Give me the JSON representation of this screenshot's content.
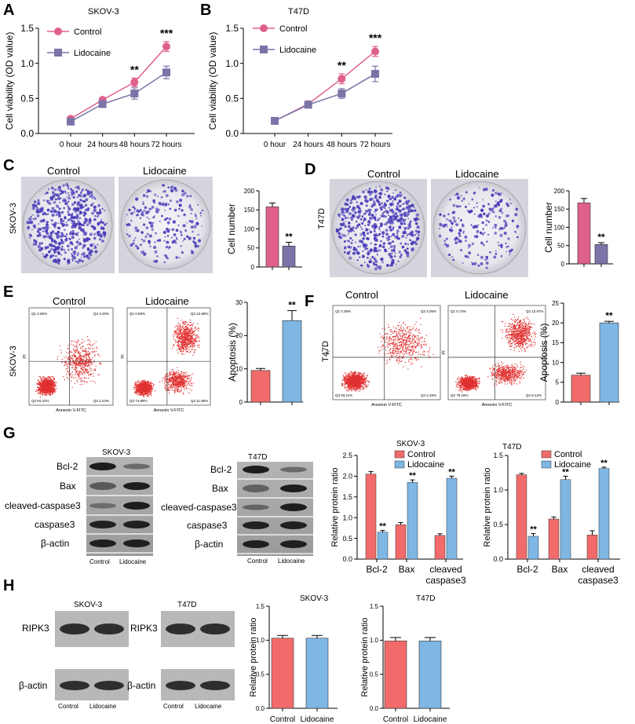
{
  "panel_letters": {
    "A": "A",
    "B": "B",
    "C": "C",
    "D": "D",
    "E": "E",
    "F": "F",
    "G": "G",
    "H": "H"
  },
  "colors": {
    "control_pink": "#e0608c",
    "lido_purple": "#7a74a8",
    "control_red": "#f26b6b",
    "lido_blue": "#7eb6e4",
    "dot_purple": "#4b3bb8",
    "flow_red": "#e03030"
  },
  "labels": {
    "skov3": "SKOV-3",
    "t47d": "T47D",
    "control": "Control",
    "lidocaine": "Lidocaine",
    "cell_number": "Cell number",
    "apoptosis": "Apoptosis (%)",
    "viability": "Cell viability (OD value)",
    "relative_ratio": "Relative protein ratio",
    "annexin": "Annexin V-FITC",
    "pi": "PI",
    "bcl2": "Bcl-2",
    "bax": "Bax",
    "cleaved_caspase3": "cleaved-caspase3",
    "caspase3": "caspase3",
    "bactin": "β-actin",
    "ripk3": "RIPK3",
    "cleaved_l1": "cleaved",
    "cleaved_l2": "caspase3"
  },
  "flow_quadrants": {
    "skov_control": [
      "Q1 0.65%",
      "Q2 3.49%",
      "Q3 94.22%",
      "Q4 2.24%"
    ],
    "skov_lido": [
      "Q1 0.69%",
      "Q2 12.68%",
      "Q3 74.89%",
      "Q4 11.96%"
    ],
    "t47d_control": [
      "Q1 0.39%",
      "Q2 4.05%",
      "Q3 93.11%",
      "Q4 2.45%"
    ],
    "t47d_lido": [
      "Q1 0.73%",
      "Q2 12.97%",
      "Q3 78.18%",
      "Q4 8.12%"
    ]
  },
  "chart_data": [
    {
      "id": "A",
      "type": "line",
      "title": "SKOV-3",
      "x": [
        "0 hour",
        "24 hours",
        "48 hours",
        "72 hours"
      ],
      "ylabel": "Cell viability (OD value)",
      "ylim": [
        0,
        1.5
      ],
      "yticks": [
        "0.0",
        "0.5",
        "1.0",
        "1.5"
      ],
      "series": [
        {
          "name": "Control",
          "values": [
            0.21,
            0.48,
            0.73,
            1.24
          ],
          "err": [
            0.03,
            0.03,
            0.06,
            0.07
          ]
        },
        {
          "name": "Lidocaine",
          "values": [
            0.17,
            0.42,
            0.57,
            0.87
          ],
          "err": [
            0.03,
            0.03,
            0.08,
            0.09
          ]
        }
      ],
      "significance": [
        "",
        "",
        "**",
        "***"
      ]
    },
    {
      "id": "B",
      "type": "line",
      "title": "T47D",
      "x": [
        "0 hour",
        "24 hours",
        "48 hours",
        "72 hours"
      ],
      "ylabel": "Cell viability (OD value)",
      "ylim": [
        0,
        1.5
      ],
      "yticks": [
        "0.0",
        "0.5",
        "1.0",
        "1.5"
      ],
      "series": [
        {
          "name": "Control",
          "values": [
            0.18,
            0.42,
            0.78,
            1.17
          ],
          "err": [
            0.03,
            0.03,
            0.07,
            0.07
          ]
        },
        {
          "name": "Lidocaine",
          "values": [
            0.18,
            0.41,
            0.57,
            0.85
          ],
          "err": [
            0.03,
            0.03,
            0.07,
            0.11
          ]
        }
      ],
      "significance": [
        "",
        "",
        "**",
        "***"
      ]
    },
    {
      "id": "C",
      "type": "bar",
      "ylabel": "Cell number",
      "ylim": [
        0,
        200
      ],
      "yticks": [
        "0",
        "50",
        "100",
        "150",
        "200"
      ],
      "categories": [
        "Control",
        "Lidocaine"
      ],
      "values": [
        158,
        55
      ],
      "err": [
        10,
        10
      ],
      "significance": [
        "",
        "**"
      ]
    },
    {
      "id": "D",
      "type": "bar",
      "ylabel": "Cell number",
      "ylim": [
        0,
        200
      ],
      "yticks": [
        "0",
        "50",
        "100",
        "150",
        "200"
      ],
      "categories": [
        "Control",
        "Lidocaine"
      ],
      "values": [
        167,
        53
      ],
      "err": [
        12,
        5
      ],
      "significance": [
        "",
        "**"
      ]
    },
    {
      "id": "E",
      "type": "bar",
      "ylabel": "Apoptosis (%)",
      "ylim": [
        0,
        30
      ],
      "yticks": [
        "0",
        "10",
        "20",
        "30"
      ],
      "categories": [
        "Control",
        "Lidocaine"
      ],
      "values": [
        9.5,
        24.5
      ],
      "err": [
        0.6,
        3.0
      ],
      "significance": [
        "",
        "**"
      ]
    },
    {
      "id": "F",
      "type": "bar",
      "ylabel": "Apoptosis (%)",
      "ylim": [
        0,
        25
      ],
      "yticks": [
        "0",
        "5",
        "10",
        "15",
        "20",
        "25"
      ],
      "categories": [
        "Control",
        "Lidocaine"
      ],
      "values": [
        6.8,
        20.0
      ],
      "err": [
        0.5,
        0.4
      ],
      "significance": [
        "",
        "**"
      ]
    },
    {
      "id": "G1",
      "type": "bar",
      "title": "SKOV-3",
      "ylabel": "Relative protein ratio",
      "ylim": [
        0,
        2.5
      ],
      "yticks": [
        "0.0",
        "0.5",
        "1.0",
        "1.5",
        "2.0",
        "2.5"
      ],
      "categories": [
        "Bcl-2",
        "Bax",
        "cleaved caspase3"
      ],
      "series": [
        {
          "name": "Control",
          "values": [
            2.05,
            0.83,
            0.57
          ],
          "err": [
            0.06,
            0.05,
            0.04
          ]
        },
        {
          "name": "Lidocaine",
          "values": [
            0.65,
            1.85,
            1.95
          ],
          "err": [
            0.04,
            0.06,
            0.05
          ]
        }
      ],
      "significance": [
        "**",
        "**",
        "**"
      ]
    },
    {
      "id": "G2",
      "type": "bar",
      "title": "T47D",
      "ylabel": "Relative protein ratio",
      "ylim": [
        0,
        1.5
      ],
      "yticks": [
        "0.0",
        "0.5",
        "1.0",
        "1.5"
      ],
      "categories": [
        "Bcl-2",
        "Bax",
        "cleaved caspase3"
      ],
      "series": [
        {
          "name": "Control",
          "values": [
            1.22,
            0.58,
            0.35
          ],
          "err": [
            0.02,
            0.03,
            0.06
          ]
        },
        {
          "name": "Lidocaine",
          "values": [
            0.33,
            1.15,
            1.31
          ],
          "err": [
            0.04,
            0.05,
            0.02
          ]
        }
      ],
      "significance": [
        "**",
        "**",
        "**"
      ]
    },
    {
      "id": "H1",
      "type": "bar",
      "title": "SKOV-3",
      "ylabel": "Relative protein ratio",
      "ylim": [
        0,
        1.5
      ],
      "yticks": [
        "0.0",
        "0.5",
        "1.0",
        "1.5"
      ],
      "categories": [
        "Control",
        "Lidocaine"
      ],
      "values": [
        1.03,
        1.03
      ],
      "err": [
        0.04,
        0.04
      ],
      "significance": [
        "",
        ""
      ]
    },
    {
      "id": "H2",
      "type": "bar",
      "title": "T47D",
      "ylabel": "Relative protein ratio",
      "ylim": [
        0,
        1.5
      ],
      "yticks": [
        "0.0",
        "0.5",
        "1.0",
        "1.5"
      ],
      "categories": [
        "Control",
        "Lidocaine"
      ],
      "values": [
        0.99,
        0.99
      ],
      "err": [
        0.05,
        0.05
      ],
      "significance": [
        "",
        ""
      ]
    }
  ]
}
